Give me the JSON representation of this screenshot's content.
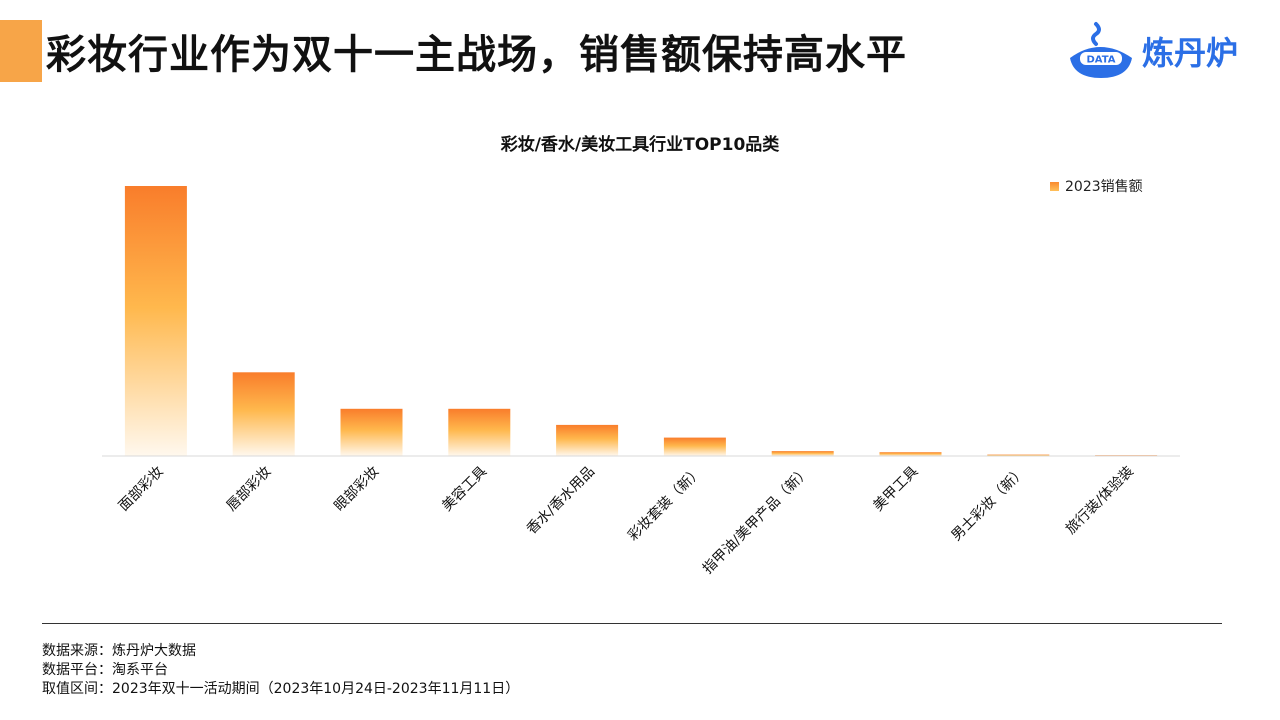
{
  "page": {
    "title": "彩妆行业作为双十一主战场，销售额保持高水平",
    "logo_text": "炼丹炉",
    "logo_badge": "DATA"
  },
  "chart_data": {
    "type": "bar",
    "title": "彩妆/香水/美妆工具行业TOP10品类",
    "categories": [
      "面部彩妆",
      "唇部彩妆",
      "眼部彩妆",
      "美容工具",
      "香水/香水用品",
      "彩妆套装（新）",
      "指甲油/美甲产品（新）",
      "美甲工具",
      "男士彩妆（新）",
      "旅行装/体验装"
    ],
    "series": [
      {
        "name": "2023销售额",
        "values": [
          100,
          31,
          17.5,
          17.5,
          11.5,
          6.8,
          1.8,
          1.4,
          0.5,
          0.1
        ]
      }
    ],
    "ylim": [
      0,
      100
    ],
    "grid": false,
    "legend": "top-right",
    "colors": {
      "bar_top": "#f97d2b",
      "bar_mid": "#ffb84d",
      "bar_bottom": "#fff8ee"
    }
  },
  "footer": {
    "source": "数据来源：炼丹炉大数据",
    "platform": "数据平台：淘系平台",
    "period": "取值区间：2023年双十一活动期间（2023年10月24日-2023年11月11日）"
  }
}
